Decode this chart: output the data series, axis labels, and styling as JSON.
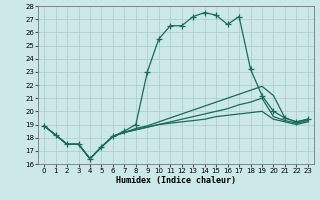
{
  "xlabel": "Humidex (Indice chaleur)",
  "bg_color": "#cce8e8",
  "grid_color": "#aacccc",
  "line_color": "#1a6b5a",
  "xlim_min": -0.5,
  "xlim_max": 23.5,
  "ylim_min": 16,
  "ylim_max": 28,
  "xticks": [
    0,
    1,
    2,
    3,
    4,
    5,
    6,
    7,
    8,
    9,
    10,
    11,
    12,
    13,
    14,
    15,
    16,
    17,
    18,
    19,
    20,
    21,
    22,
    23
  ],
  "yticks": [
    16,
    17,
    18,
    19,
    20,
    21,
    22,
    23,
    24,
    25,
    26,
    27,
    28
  ],
  "series1_x": [
    0,
    1,
    2,
    3,
    4,
    5,
    6,
    7,
    8,
    9,
    10,
    11,
    12,
    13,
    14,
    15,
    16,
    17,
    18,
    19,
    20,
    21,
    22,
    23
  ],
  "series1_y": [
    18.9,
    18.2,
    17.5,
    17.5,
    16.4,
    17.3,
    18.1,
    18.5,
    19.0,
    23.0,
    25.5,
    26.5,
    26.5,
    27.2,
    27.5,
    27.3,
    26.6,
    27.2,
    23.2,
    21.2,
    20.0,
    19.5,
    19.2,
    19.4
  ],
  "series2_x": [
    0,
    1,
    2,
    3,
    4,
    5,
    6,
    7,
    8,
    9,
    10,
    11,
    12,
    13,
    14,
    15,
    16,
    17,
    18,
    19,
    20,
    21,
    22,
    23
  ],
  "series2_y": [
    18.9,
    18.2,
    17.5,
    17.5,
    16.4,
    17.3,
    18.1,
    18.4,
    18.7,
    18.9,
    19.2,
    19.5,
    19.8,
    20.1,
    20.4,
    20.7,
    21.0,
    21.3,
    21.6,
    21.9,
    21.2,
    19.5,
    19.2,
    19.4
  ],
  "series3_x": [
    0,
    1,
    2,
    3,
    4,
    5,
    6,
    7,
    8,
    9,
    10,
    11,
    12,
    13,
    14,
    15,
    16,
    17,
    18,
    19,
    20,
    21,
    22,
    23
  ],
  "series3_y": [
    18.9,
    18.2,
    17.5,
    17.5,
    16.4,
    17.3,
    18.1,
    18.4,
    18.6,
    18.8,
    19.0,
    19.2,
    19.4,
    19.6,
    19.8,
    20.0,
    20.2,
    20.5,
    20.7,
    21.0,
    19.6,
    19.3,
    19.1,
    19.3
  ],
  "series4_x": [
    0,
    1,
    2,
    3,
    4,
    5,
    6,
    7,
    8,
    9,
    10,
    11,
    12,
    13,
    14,
    15,
    16,
    17,
    18,
    19,
    20,
    21,
    22,
    23
  ],
  "series4_y": [
    18.9,
    18.2,
    17.5,
    17.5,
    16.4,
    17.3,
    18.1,
    18.4,
    18.6,
    18.8,
    19.0,
    19.1,
    19.2,
    19.3,
    19.4,
    19.6,
    19.7,
    19.8,
    19.9,
    20.0,
    19.4,
    19.2,
    19.0,
    19.2
  ],
  "tick_fontsize": 5,
  "xlabel_fontsize": 6
}
